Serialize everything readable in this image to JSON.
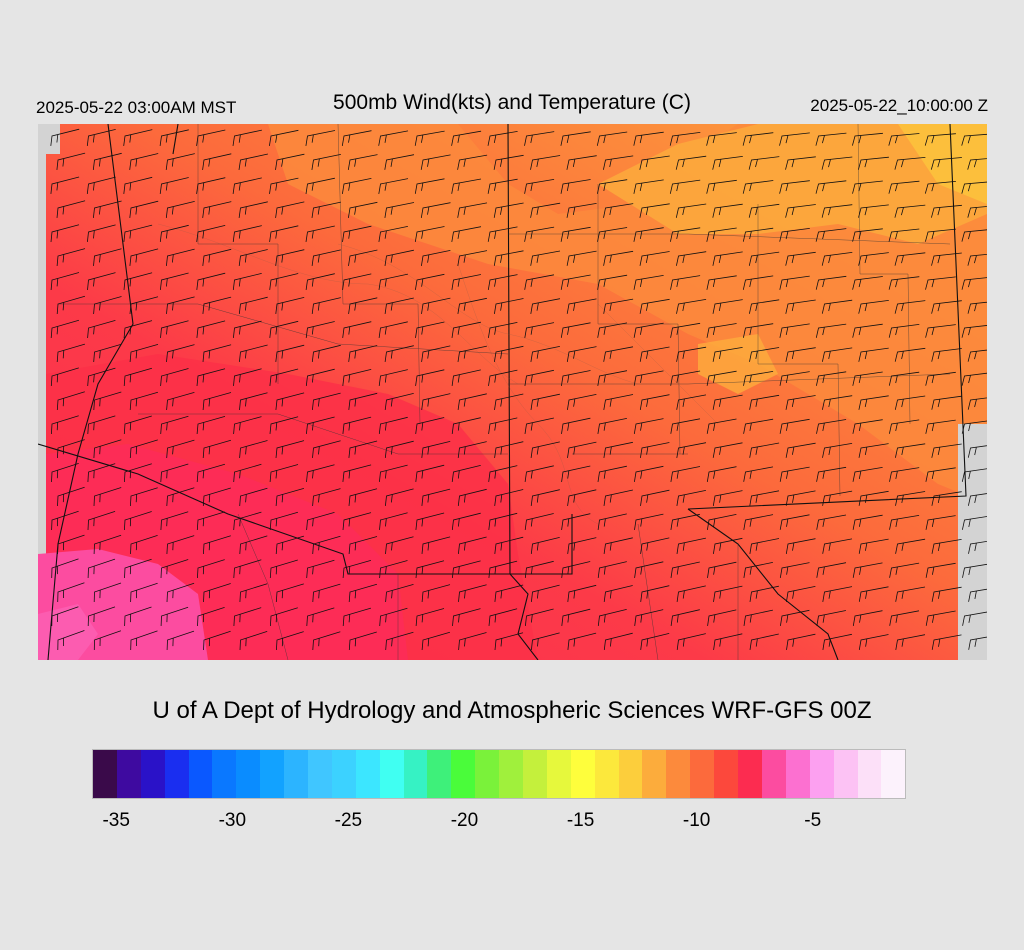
{
  "header": {
    "local_time": "2025-05-22 03:00AM MST",
    "title": "500mb Wind(kts) and Temperature (C)",
    "valid_time": "2025-05-22_10:00:00 Z"
  },
  "credit": "U of A Dept of Hydrology and Atmospheric Sciences WRF-GFS 00Z",
  "colorbar": {
    "colors": [
      "#3a0a4a",
      "#3e0aa0",
      "#2a12c8",
      "#1a2ef0",
      "#0a58ff",
      "#0a78ff",
      "#0a8cff",
      "#12a2ff",
      "#2cb4ff",
      "#40c6ff",
      "#3cd2ff",
      "#3ce6ff",
      "#40fff2",
      "#36f2c4",
      "#3ef07a",
      "#4afc3a",
      "#7af23a",
      "#a0f03c",
      "#c4f03c",
      "#e6f83c",
      "#fefe3c",
      "#fce83c",
      "#fcce3c",
      "#fcac3c",
      "#fc8a3c",
      "#fc6a3c",
      "#fc483c",
      "#fc2c50",
      "#fc4ca0",
      "#fc70d0",
      "#fca0f0",
      "#fcc2f4",
      "#fce0f8",
      "#fcf2fc"
    ],
    "ticks": [
      "-35",
      "-30",
      "-25",
      "-20",
      "-15",
      "-10",
      "-5"
    ],
    "tick_values": [
      -35,
      -30,
      -25,
      -20,
      -15,
      -10,
      -5
    ],
    "min": -36,
    "max": -1
  },
  "map": {
    "variable": "500mb temperature",
    "units": "C",
    "wind_barbs": "westerly to southwesterly 20-30 kts across domain",
    "temperature_range": [
      -11,
      -5
    ]
  }
}
